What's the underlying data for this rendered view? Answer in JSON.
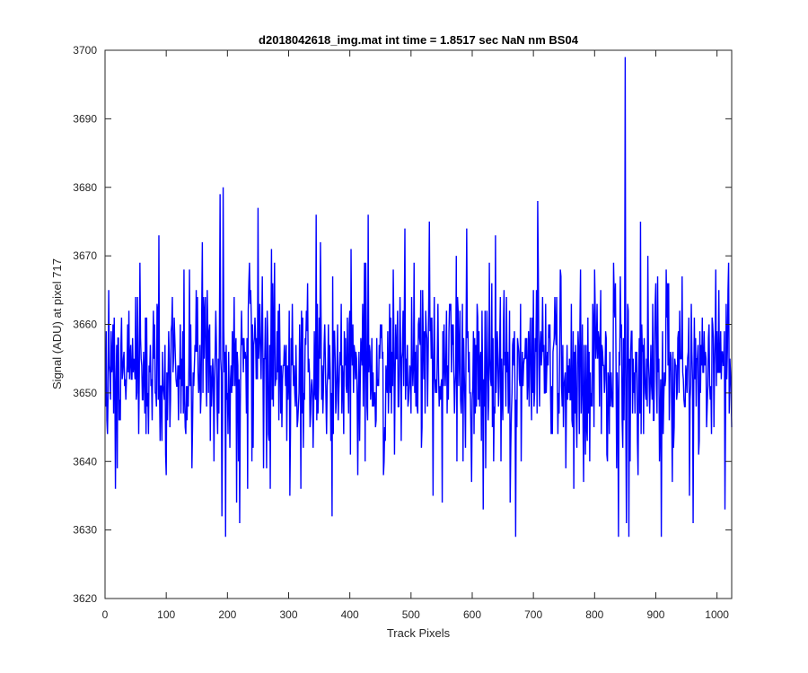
{
  "chart_data": {
    "type": "line",
    "title": "d2018042618_img.mat int time = 1.8517 sec  NaN nm BS04",
    "xlabel": "Track Pixels",
    "ylabel": "Signal (ADU) at pixel 717",
    "xlim": [
      0,
      1024
    ],
    "ylim": [
      3620,
      3700
    ],
    "xticks": [
      0,
      100,
      200,
      300,
      400,
      500,
      600,
      700,
      800,
      900,
      1000
    ],
    "yticks": [
      3620,
      3630,
      3640,
      3650,
      3660,
      3670,
      3680,
      3690,
      3700
    ],
    "grid": false,
    "legend": "none",
    "series": [
      {
        "color": "#0000ff",
        "x_start": 1,
        "x_step": 1,
        "count": 1024,
        "mean": 3653.5,
        "std_dev": 6.5,
        "y_min": 3629,
        "y_max": 3699,
        "notable_points": [
          {
            "x": 6,
            "y": 3665
          },
          {
            "x": 17,
            "y": 3636
          },
          {
            "x": 57,
            "y": 3669
          },
          {
            "x": 88,
            "y": 3673
          },
          {
            "x": 138,
            "y": 3668
          },
          {
            "x": 188,
            "y": 3679
          },
          {
            "x": 191,
            "y": 3632
          },
          {
            "x": 193,
            "y": 3680
          },
          {
            "x": 197,
            "y": 3629
          },
          {
            "x": 220,
            "y": 3631
          },
          {
            "x": 250,
            "y": 3677
          },
          {
            "x": 272,
            "y": 3671
          },
          {
            "x": 302,
            "y": 3635
          },
          {
            "x": 345,
            "y": 3676
          },
          {
            "x": 352,
            "y": 3672
          },
          {
            "x": 402,
            "y": 3671
          },
          {
            "x": 430,
            "y": 3676
          },
          {
            "x": 471,
            "y": 3668
          },
          {
            "x": 490,
            "y": 3674
          },
          {
            "x": 551,
            "y": 3634
          },
          {
            "x": 591,
            "y": 3674
          },
          {
            "x": 618,
            "y": 3633
          },
          {
            "x": 628,
            "y": 3669
          },
          {
            "x": 638,
            "y": 3673
          },
          {
            "x": 671,
            "y": 3629
          },
          {
            "x": 707,
            "y": 3678
          },
          {
            "x": 766,
            "y": 3636
          },
          {
            "x": 810,
            "y": 3665
          },
          {
            "x": 834,
            "y": 3666
          },
          {
            "x": 839,
            "y": 3629
          },
          {
            "x": 850,
            "y": 3699
          },
          {
            "x": 856,
            "y": 3629
          },
          {
            "x": 875,
            "y": 3675
          },
          {
            "x": 887,
            "y": 3670
          },
          {
            "x": 909,
            "y": 3629
          },
          {
            "x": 917,
            "y": 3668
          },
          {
            "x": 943,
            "y": 3667
          },
          {
            "x": 955,
            "y": 3635
          },
          {
            "x": 1013,
            "y": 3633
          },
          {
            "x": 1019,
            "y": 3669
          }
        ]
      }
    ]
  }
}
